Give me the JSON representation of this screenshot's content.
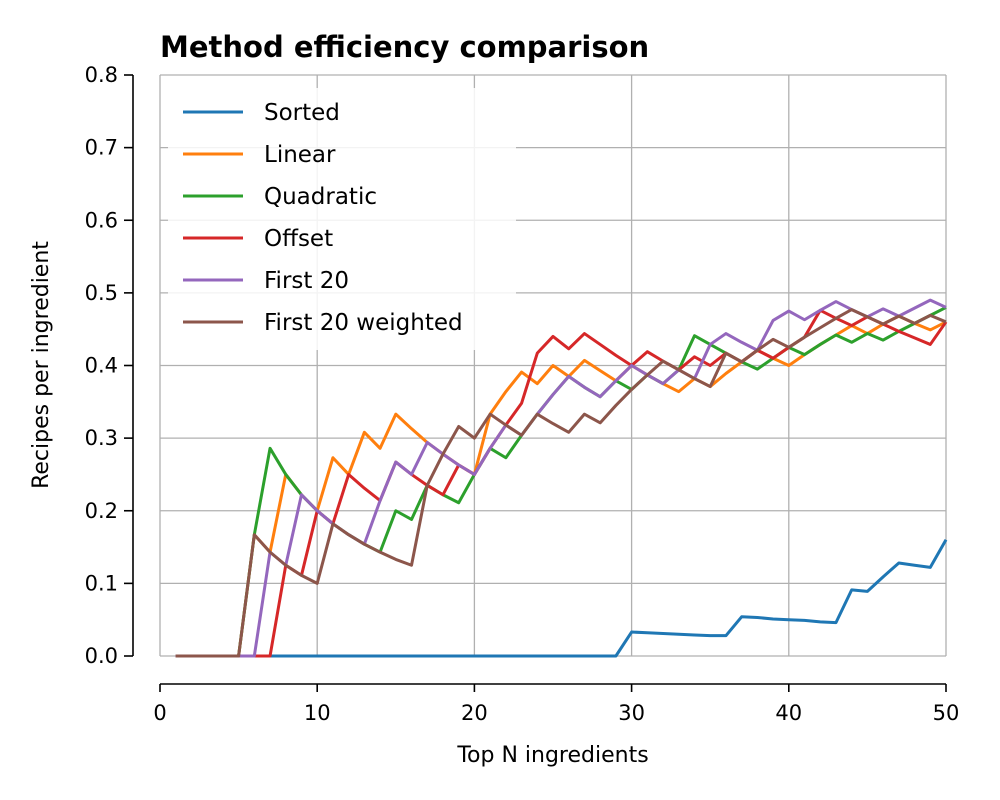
{
  "chart_data": {
    "type": "line",
    "title": "Method efficiency comparison",
    "xlabel": "Top N ingredients",
    "ylabel": "Recipes per ingredient",
    "xlim": [
      0,
      50
    ],
    "ylim": [
      0,
      0.8
    ],
    "xticks": [
      0,
      10,
      20,
      30,
      40,
      50
    ],
    "xtick_labels": [
      "0",
      "10",
      "20",
      "30",
      "40",
      "50"
    ],
    "yticks": [
      0,
      0.1,
      0.2,
      0.3,
      0.4,
      0.5,
      0.6,
      0.7,
      0.8
    ],
    "ytick_labels": [
      "0.0",
      "0.1",
      "0.2",
      "0.3",
      "0.4",
      "0.5",
      "0.6",
      "0.7",
      "0.8"
    ],
    "grid": true,
    "legend_position": "top-left",
    "x": [
      1,
      2,
      3,
      4,
      5,
      6,
      7,
      8,
      9,
      10,
      11,
      12,
      13,
      14,
      15,
      16,
      17,
      18,
      19,
      20,
      21,
      22,
      23,
      24,
      25,
      26,
      27,
      28,
      29,
      30,
      31,
      32,
      33,
      34,
      35,
      36,
      37,
      38,
      39,
      40,
      41,
      42,
      43,
      44,
      45,
      46,
      47,
      48,
      49,
      50
    ],
    "series": [
      {
        "name": "Sorted",
        "color": "#1f77b4",
        "values": [
          0,
          0,
          0,
          0,
          0,
          0,
          0,
          0,
          0,
          0,
          0,
          0,
          0,
          0,
          0,
          0,
          0,
          0,
          0,
          0,
          0,
          0,
          0,
          0,
          0,
          0,
          0,
          0,
          0,
          0.033,
          0.032,
          0.031,
          0.03,
          0.029,
          0.028,
          0.028,
          0.054,
          0.053,
          0.051,
          0.05,
          0.049,
          0.047,
          0.046,
          0.091,
          0.089,
          0.109,
          0.128,
          0.125,
          0.122,
          0.16
        ]
      },
      {
        "name": "Linear",
        "color": "#ff7f0e",
        "values": [
          0,
          0,
          0,
          0,
          0,
          0.167,
          0.143,
          0.25,
          0.222,
          0.2,
          0.273,
          0.25,
          0.308,
          0.286,
          0.333,
          0.313,
          0.294,
          0.278,
          0.263,
          0.25,
          0.333,
          0.364,
          0.391,
          0.375,
          0.4,
          0.385,
          0.407,
          0.393,
          0.379,
          0.4,
          0.387,
          0.375,
          0.364,
          0.382,
          0.371,
          0.389,
          0.405,
          0.421,
          0.41,
          0.4,
          0.415,
          0.429,
          0.442,
          0.455,
          0.444,
          0.457,
          0.468,
          0.458,
          0.449,
          0.46
        ]
      },
      {
        "name": "Quadratic",
        "color": "#2ca02c",
        "values": [
          0,
          0,
          0,
          0,
          0,
          0.167,
          0.286,
          0.25,
          0.222,
          0.2,
          0.182,
          0.167,
          0.154,
          0.143,
          0.2,
          0.188,
          0.235,
          0.222,
          0.211,
          0.25,
          0.286,
          0.273,
          0.304,
          0.333,
          0.36,
          0.385,
          0.37,
          0.357,
          0.379,
          0.367,
          0.387,
          0.375,
          0.394,
          0.441,
          0.429,
          0.417,
          0.405,
          0.395,
          0.41,
          0.425,
          0.415,
          0.429,
          0.442,
          0.432,
          0.444,
          0.435,
          0.447,
          0.458,
          0.469,
          0.48
        ]
      },
      {
        "name": "Offset",
        "color": "#d62728",
        "values": [
          0,
          0,
          0,
          0,
          0,
          0,
          0,
          0.125,
          0.111,
          0.2,
          0.182,
          0.25,
          0.231,
          0.214,
          0.267,
          0.25,
          0.235,
          0.222,
          0.263,
          0.25,
          0.286,
          0.318,
          0.348,
          0.417,
          0.44,
          0.423,
          0.444,
          0.429,
          0.414,
          0.4,
          0.419,
          0.406,
          0.394,
          0.412,
          0.4,
          0.417,
          0.405,
          0.421,
          0.41,
          0.425,
          0.439,
          0.476,
          0.465,
          0.455,
          0.467,
          0.457,
          0.447,
          0.438,
          0.429,
          0.46
        ]
      },
      {
        "name": "First 20",
        "color": "#9467bd",
        "values": [
          0,
          0,
          0,
          0,
          0,
          0,
          0.143,
          0.125,
          0.222,
          0.2,
          0.182,
          0.167,
          0.154,
          0.214,
          0.267,
          0.25,
          0.294,
          0.278,
          0.263,
          0.25,
          0.286,
          0.318,
          0.304,
          0.333,
          0.36,
          0.385,
          0.37,
          0.357,
          0.379,
          0.4,
          0.387,
          0.375,
          0.394,
          0.382,
          0.429,
          0.444,
          0.432,
          0.421,
          0.462,
          0.475,
          0.463,
          0.476,
          0.488,
          0.477,
          0.467,
          0.478,
          0.468,
          0.479,
          0.49,
          0.48
        ]
      },
      {
        "name": "First 20 weighted",
        "color": "#8c564b",
        "values": [
          0,
          0,
          0,
          0,
          0,
          0.167,
          0.143,
          0.125,
          0.111,
          0.1,
          0.182,
          0.167,
          0.154,
          0.143,
          0.133,
          0.125,
          0.235,
          0.278,
          0.316,
          0.3,
          0.333,
          0.318,
          0.304,
          0.333,
          0.32,
          0.308,
          0.333,
          0.321,
          0.345,
          0.367,
          0.387,
          0.406,
          0.394,
          0.382,
          0.371,
          0.417,
          0.405,
          0.421,
          0.436,
          0.425,
          0.439,
          0.452,
          0.465,
          0.477,
          0.467,
          0.457,
          0.468,
          0.458,
          0.469,
          0.46
        ]
      }
    ]
  }
}
